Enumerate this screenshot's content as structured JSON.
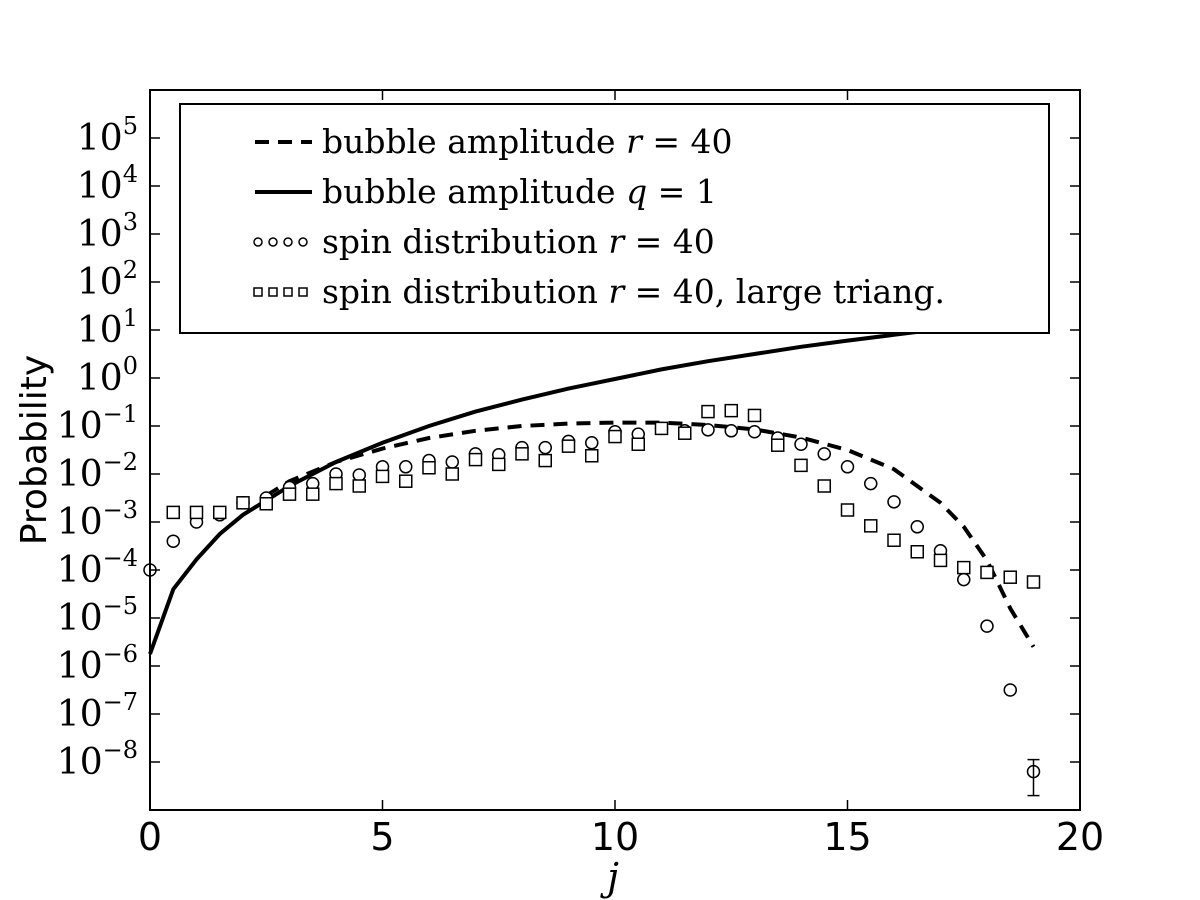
{
  "chart_data": {
    "type": "scatter",
    "xlabel": "j",
    "ylabel": "Probability",
    "xlim": [
      0,
      20
    ],
    "ylim_log10": [
      -9,
      6
    ],
    "y_scale": "log",
    "x_ticks": [
      "0",
      "5",
      "10",
      "15",
      "20"
    ],
    "y_ticks": [
      {
        "base": "10",
        "exp": "5"
      },
      {
        "base": "10",
        "exp": "4"
      },
      {
        "base": "10",
        "exp": "3"
      },
      {
        "base": "10",
        "exp": "2"
      },
      {
        "base": "10",
        "exp": "1"
      },
      {
        "base": "10",
        "exp": "0"
      },
      {
        "base": "10",
        "exp": "−1"
      },
      {
        "base": "10",
        "exp": "−2"
      },
      {
        "base": "10",
        "exp": "−3"
      },
      {
        "base": "10",
        "exp": "−4"
      },
      {
        "base": "10",
        "exp": "−5"
      },
      {
        "base": "10",
        "exp": "−6"
      },
      {
        "base": "10",
        "exp": "−7"
      },
      {
        "base": "10",
        "exp": "−8"
      }
    ],
    "legend_position": "top",
    "series": [
      {
        "name": "bubble amplitude r = 40",
        "style": "dashed-line",
        "x": [
          2.5,
          3,
          4,
          5,
          6,
          7,
          8,
          9,
          10,
          11,
          12,
          13,
          14,
          15,
          16,
          17,
          17.5,
          18,
          18.5,
          19
        ],
        "log10_y": [
          -2.45,
          -2.15,
          -1.75,
          -1.47,
          -1.25,
          -1.1,
          -1.0,
          -0.95,
          -0.93,
          -0.93,
          -0.98,
          -1.07,
          -1.24,
          -1.5,
          -1.9,
          -2.6,
          -3.1,
          -3.8,
          -4.8,
          -5.6
        ]
      },
      {
        "name": "bubble amplitude q = 1",
        "style": "solid-line",
        "x": [
          0,
          0.5,
          1,
          1.5,
          2,
          2.5,
          3,
          4,
          5,
          6,
          7,
          8,
          9,
          10,
          11,
          12,
          13,
          14,
          15,
          16,
          17,
          18,
          19
        ],
        "log10_y": [
          -5.75,
          -4.4,
          -3.78,
          -3.25,
          -2.85,
          -2.55,
          -2.25,
          -1.75,
          -1.35,
          -1.0,
          -0.7,
          -0.45,
          -0.22,
          -0.02,
          0.18,
          0.35,
          0.5,
          0.65,
          0.78,
          0.9,
          1.02,
          1.13,
          1.23
        ]
      },
      {
        "name": "spin distribution r = 40",
        "style": "circle-markers",
        "x": [
          0,
          0.5,
          1,
          1.5,
          2,
          2.5,
          3,
          3.5,
          4,
          4.5,
          5,
          5.5,
          6,
          6.5,
          7,
          7.5,
          8,
          8.5,
          9,
          9.5,
          10,
          10.5,
          11,
          11.5,
          12,
          12.5,
          13,
          13.5,
          14,
          14.5,
          15,
          15.5,
          16,
          16.5,
          17,
          17.5,
          18,
          18.5,
          19
        ],
        "log10_y": [
          -4.0,
          -3.4,
          -3.0,
          -2.85,
          -2.6,
          -2.5,
          -2.28,
          -2.2,
          -2.0,
          -2.02,
          -1.85,
          -1.85,
          -1.72,
          -1.75,
          -1.58,
          -1.6,
          -1.45,
          -1.45,
          -1.32,
          -1.35,
          -1.12,
          -1.17,
          -1.05,
          -1.1,
          -1.08,
          -1.1,
          -1.12,
          -1.25,
          -1.38,
          -1.58,
          -1.85,
          -2.2,
          -2.58,
          -3.1,
          -3.6,
          -4.2,
          -5.17,
          -6.5,
          -8.2
        ]
      },
      {
        "name": "spin distribution r = 40, large triang.",
        "style": "square-markers",
        "x": [
          0.5,
          1,
          1.5,
          2,
          2.5,
          3,
          3.5,
          4,
          4.5,
          5,
          5.5,
          6,
          6.5,
          7,
          7.5,
          8,
          8.5,
          9,
          9.5,
          10,
          10.5,
          11,
          11.5,
          12,
          12.5,
          13,
          13.5,
          14,
          14.5,
          15,
          15.5,
          16,
          16.5,
          17,
          17.5,
          18,
          18.5,
          19
        ],
        "log10_y": [
          -2.8,
          -2.8,
          -2.8,
          -2.6,
          -2.62,
          -2.42,
          -2.42,
          -2.2,
          -2.25,
          -2.05,
          -2.15,
          -1.87,
          -2.0,
          -1.7,
          -1.8,
          -1.58,
          -1.72,
          -1.42,
          -1.62,
          -1.22,
          -1.38,
          -1.05,
          -1.15,
          -0.7,
          -0.68,
          -0.78,
          -1.4,
          -1.82,
          -2.25,
          -2.75,
          -3.08,
          -3.38,
          -3.62,
          -3.8,
          -3.95,
          -4.05,
          -4.15,
          -4.25
        ]
      }
    ],
    "error_bars": [
      {
        "x": 19,
        "log10_y": -8.2,
        "log10_low": -8.7,
        "log10_high": -7.95
      }
    ]
  },
  "legend": {
    "entries": [
      {
        "marker": "dashed-line",
        "prefix": "bubble amplitude ",
        "var": "r",
        "eq": " = 40",
        "suffix": ""
      },
      {
        "marker": "solid-line",
        "prefix": "bubble amplitude ",
        "var": "q",
        "eq": " = 1",
        "suffix": ""
      },
      {
        "marker": "circle-markers",
        "prefix": "spin distribution ",
        "var": "r",
        "eq": " = 40",
        "suffix": ""
      },
      {
        "marker": "square-markers",
        "prefix": "spin distribution ",
        "var": "r",
        "eq": " = 40",
        "suffix": ", large triang."
      }
    ]
  }
}
